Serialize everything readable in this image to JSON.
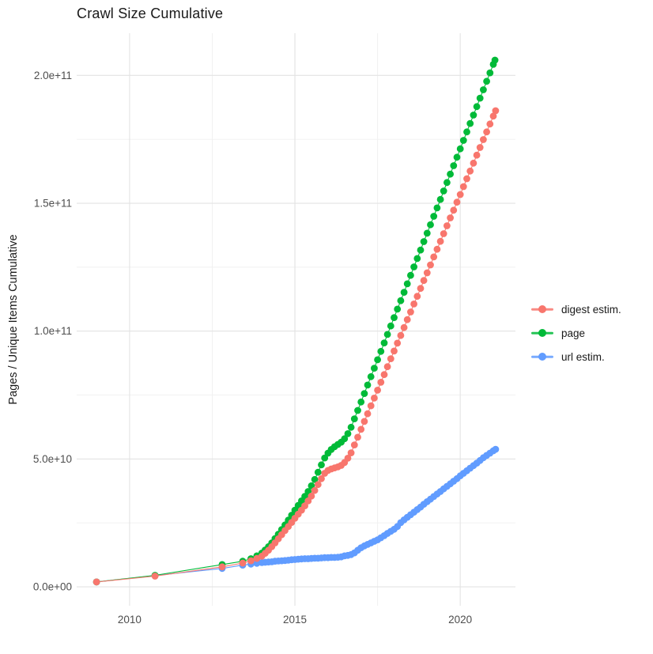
{
  "page": {
    "title": "Crawl Size Cumulative"
  },
  "y_axis_title": "Pages / Unique Items Cumulative",
  "legend": {
    "items": [
      {
        "label": "digest estim.",
        "color": "#F8766D"
      },
      {
        "label": "page",
        "color": "#00BA38"
      },
      {
        "label": "url estim.",
        "color": "#619CFF"
      }
    ]
  },
  "colors": {
    "digest": "#F8766D",
    "page": "#00BA38",
    "url": "#619CFF",
    "grid_major": "#e3e3e3",
    "grid_minor": "#f0f0f0",
    "axis_text": "#4d4d4d",
    "title_text": "#1a1a1a"
  },
  "chart_data": {
    "type": "scatter",
    "title": "Crawl Size Cumulative",
    "xlabel": "",
    "ylabel": "Pages / Unique Items Cumulative",
    "grid": "on",
    "legend_position": "right",
    "x_axis": {
      "range": [
        2008.4,
        2021.67
      ],
      "ticks": [
        2010,
        2015,
        2020
      ],
      "tick_labels": [
        "2010",
        "2015",
        "2020"
      ],
      "minor_ticks": [
        2012.5,
        2017.5
      ]
    },
    "y_axis": {
      "unit": "billions (1e9) of pages / unique items",
      "range": [
        -7.4,
        216.5
      ],
      "ticks": [
        0,
        50,
        100,
        150,
        200
      ],
      "tick_labels": [
        "0.0e+00",
        "5.0e+10",
        "1.0e+11",
        "1.5e+11",
        "2.0e+11"
      ],
      "minor_ticks": [
        25,
        75,
        125,
        175
      ]
    },
    "series": [
      {
        "name": "digest estim.",
        "color": "#F8766D",
        "points": [
          [
            2009.0,
            1.9
          ],
          [
            2010.77,
            4.2
          ],
          [
            2012.8,
            7.8
          ],
          [
            2013.42,
            9.3
          ],
          [
            2013.67,
            10.2
          ],
          [
            2013.85,
            11.1
          ],
          [
            2014.0,
            12.0
          ],
          [
            2014.1,
            13.1
          ],
          [
            2014.2,
            14.3
          ],
          [
            2014.3,
            15.7
          ],
          [
            2014.4,
            17.2
          ],
          [
            2014.5,
            18.8
          ],
          [
            2014.6,
            20.4
          ],
          [
            2014.7,
            22.0
          ],
          [
            2014.8,
            23.6
          ],
          [
            2014.9,
            25.2
          ],
          [
            2015.0,
            26.8
          ],
          [
            2015.1,
            28.4
          ],
          [
            2015.2,
            30.0
          ],
          [
            2015.3,
            31.7
          ],
          [
            2015.4,
            33.6
          ],
          [
            2015.5,
            35.5
          ],
          [
            2015.6,
            37.7
          ],
          [
            2015.7,
            40.0
          ],
          [
            2015.8,
            42.3
          ],
          [
            2015.9,
            44.4
          ],
          [
            2016.0,
            45.5
          ],
          [
            2016.1,
            46.1
          ],
          [
            2016.2,
            46.5
          ],
          [
            2016.3,
            46.9
          ],
          [
            2016.4,
            47.5
          ],
          [
            2016.5,
            48.6
          ],
          [
            2016.6,
            50.3
          ],
          [
            2016.7,
            52.4
          ],
          [
            2016.8,
            55.5
          ],
          [
            2016.9,
            58.5
          ],
          [
            2017.0,
            61.6
          ],
          [
            2017.1,
            64.7
          ],
          [
            2017.2,
            67.7
          ],
          [
            2017.3,
            70.8
          ],
          [
            2017.4,
            73.8
          ],
          [
            2017.5,
            76.9
          ],
          [
            2017.6,
            80.0
          ],
          [
            2017.7,
            83.0
          ],
          [
            2017.8,
            86.1
          ],
          [
            2017.9,
            89.2
          ],
          [
            2018.0,
            92.2
          ],
          [
            2018.1,
            95.3
          ],
          [
            2018.2,
            98.3
          ],
          [
            2018.3,
            101.4
          ],
          [
            2018.4,
            104.5
          ],
          [
            2018.5,
            107.5
          ],
          [
            2018.6,
            110.6
          ],
          [
            2018.7,
            113.6
          ],
          [
            2018.8,
            116.7
          ],
          [
            2018.9,
            119.8
          ],
          [
            2019.0,
            122.8
          ],
          [
            2019.1,
            125.9
          ],
          [
            2019.2,
            129.0
          ],
          [
            2019.3,
            132.0
          ],
          [
            2019.4,
            135.1
          ],
          [
            2019.5,
            138.1
          ],
          [
            2019.6,
            141.2
          ],
          [
            2019.7,
            144.3
          ],
          [
            2019.8,
            147.3
          ],
          [
            2019.9,
            150.4
          ],
          [
            2020.0,
            153.4
          ],
          [
            2020.1,
            156.5
          ],
          [
            2020.2,
            159.6
          ],
          [
            2020.3,
            162.6
          ],
          [
            2020.4,
            165.7
          ],
          [
            2020.5,
            168.8
          ],
          [
            2020.6,
            171.8
          ],
          [
            2020.7,
            174.9
          ],
          [
            2020.8,
            177.9
          ],
          [
            2020.9,
            181.0
          ],
          [
            2021.0,
            184.1
          ],
          [
            2021.07,
            186.2
          ]
        ]
      },
      {
        "name": "page",
        "color": "#00BA38",
        "points": [
          [
            2009.0,
            1.9
          ],
          [
            2010.77,
            4.5
          ],
          [
            2012.8,
            8.7
          ],
          [
            2013.42,
            10.0
          ],
          [
            2013.67,
            11.0
          ],
          [
            2013.85,
            12.1
          ],
          [
            2014.0,
            13.2
          ],
          [
            2014.1,
            14.4
          ],
          [
            2014.2,
            15.7
          ],
          [
            2014.3,
            17.2
          ],
          [
            2014.4,
            18.9
          ],
          [
            2014.5,
            20.6
          ],
          [
            2014.6,
            22.4
          ],
          [
            2014.7,
            24.2
          ],
          [
            2014.8,
            26.1
          ],
          [
            2014.9,
            28.0
          ],
          [
            2015.0,
            30.0
          ],
          [
            2015.1,
            31.8
          ],
          [
            2015.2,
            33.6
          ],
          [
            2015.3,
            35.4
          ],
          [
            2015.4,
            37.3
          ],
          [
            2015.5,
            39.5
          ],
          [
            2015.6,
            42.0
          ],
          [
            2015.7,
            44.8
          ],
          [
            2015.8,
            47.7
          ],
          [
            2015.9,
            50.4
          ],
          [
            2016.0,
            52.3
          ],
          [
            2016.1,
            53.7
          ],
          [
            2016.2,
            54.8
          ],
          [
            2016.3,
            55.7
          ],
          [
            2016.4,
            56.6
          ],
          [
            2016.5,
            57.9
          ],
          [
            2016.6,
            59.9
          ],
          [
            2016.7,
            62.4
          ],
          [
            2016.8,
            65.7
          ],
          [
            2016.9,
            69.0
          ],
          [
            2017.0,
            72.3
          ],
          [
            2017.1,
            75.6
          ],
          [
            2017.2,
            78.9
          ],
          [
            2017.3,
            82.2
          ],
          [
            2017.4,
            85.5
          ],
          [
            2017.5,
            88.8
          ],
          [
            2017.6,
            92.1
          ],
          [
            2017.7,
            95.4
          ],
          [
            2017.8,
            98.7
          ],
          [
            2017.9,
            102.0
          ],
          [
            2018.0,
            105.3
          ],
          [
            2018.1,
            108.6
          ],
          [
            2018.2,
            111.9
          ],
          [
            2018.3,
            115.2
          ],
          [
            2018.4,
            118.5
          ],
          [
            2018.5,
            121.8
          ],
          [
            2018.6,
            125.1
          ],
          [
            2018.7,
            128.4
          ],
          [
            2018.8,
            131.7
          ],
          [
            2018.9,
            135.0
          ],
          [
            2019.0,
            138.3
          ],
          [
            2019.1,
            141.6
          ],
          [
            2019.2,
            144.9
          ],
          [
            2019.3,
            148.2
          ],
          [
            2019.4,
            151.5
          ],
          [
            2019.5,
            154.8
          ],
          [
            2019.6,
            158.1
          ],
          [
            2019.7,
            161.4
          ],
          [
            2019.8,
            164.7
          ],
          [
            2019.9,
            168.0
          ],
          [
            2020.0,
            171.3
          ],
          [
            2020.1,
            174.6
          ],
          [
            2020.2,
            177.9
          ],
          [
            2020.3,
            181.2
          ],
          [
            2020.4,
            184.5
          ],
          [
            2020.5,
            187.8
          ],
          [
            2020.6,
            191.1
          ],
          [
            2020.7,
            194.4
          ],
          [
            2020.8,
            197.7
          ],
          [
            2020.9,
            201.0
          ],
          [
            2021.0,
            204.3
          ],
          [
            2021.05,
            206.0
          ]
        ]
      },
      {
        "name": "url estim.",
        "color": "#619CFF",
        "points": [
          [
            2009.0,
            1.9
          ],
          [
            2010.77,
            4.4
          ],
          [
            2012.8,
            7.2
          ],
          [
            2013.42,
            8.5
          ],
          [
            2013.67,
            8.9
          ],
          [
            2013.85,
            9.2
          ],
          [
            2014.0,
            9.5
          ],
          [
            2014.1,
            9.6
          ],
          [
            2014.2,
            9.7
          ],
          [
            2014.3,
            9.8
          ],
          [
            2014.4,
            10.0
          ],
          [
            2014.5,
            10.1
          ],
          [
            2014.6,
            10.2
          ],
          [
            2014.7,
            10.3
          ],
          [
            2014.8,
            10.4
          ],
          [
            2014.9,
            10.6
          ],
          [
            2015.0,
            10.7
          ],
          [
            2015.1,
            10.8
          ],
          [
            2015.2,
            10.9
          ],
          [
            2015.3,
            11.0
          ],
          [
            2015.4,
            11.0
          ],
          [
            2015.5,
            11.1
          ],
          [
            2015.6,
            11.2
          ],
          [
            2015.7,
            11.2
          ],
          [
            2015.8,
            11.3
          ],
          [
            2015.9,
            11.4
          ],
          [
            2016.0,
            11.4
          ],
          [
            2016.1,
            11.5
          ],
          [
            2016.2,
            11.5
          ],
          [
            2016.3,
            11.6
          ],
          [
            2016.4,
            11.7
          ],
          [
            2016.5,
            12.1
          ],
          [
            2016.6,
            12.3
          ],
          [
            2016.7,
            12.6
          ],
          [
            2016.8,
            13.3
          ],
          [
            2016.9,
            14.3
          ],
          [
            2017.0,
            15.3
          ],
          [
            2017.1,
            16.0
          ],
          [
            2017.2,
            16.6
          ],
          [
            2017.3,
            17.2
          ],
          [
            2017.4,
            17.8
          ],
          [
            2017.5,
            18.4
          ],
          [
            2017.6,
            19.2
          ],
          [
            2017.7,
            20.0
          ],
          [
            2017.8,
            20.9
          ],
          [
            2017.9,
            21.7
          ],
          [
            2018.0,
            22.5
          ],
          [
            2018.1,
            23.6
          ],
          [
            2018.2,
            25.1
          ],
          [
            2018.3,
            26.2
          ],
          [
            2018.4,
            27.2
          ],
          [
            2018.5,
            28.2
          ],
          [
            2018.6,
            29.2
          ],
          [
            2018.7,
            30.2
          ],
          [
            2018.8,
            31.2
          ],
          [
            2018.9,
            32.3
          ],
          [
            2019.0,
            33.3
          ],
          [
            2019.1,
            34.3
          ],
          [
            2019.2,
            35.3
          ],
          [
            2019.3,
            36.3
          ],
          [
            2019.4,
            37.3
          ],
          [
            2019.5,
            38.3
          ],
          [
            2019.6,
            39.3
          ],
          [
            2019.7,
            40.3
          ],
          [
            2019.8,
            41.3
          ],
          [
            2019.9,
            42.3
          ],
          [
            2020.0,
            43.4
          ],
          [
            2020.1,
            44.4
          ],
          [
            2020.2,
            45.4
          ],
          [
            2020.3,
            46.4
          ],
          [
            2020.4,
            47.4
          ],
          [
            2020.5,
            48.4
          ],
          [
            2020.6,
            49.4
          ],
          [
            2020.7,
            50.5
          ],
          [
            2020.8,
            51.4
          ],
          [
            2020.9,
            52.3
          ],
          [
            2021.0,
            53.2
          ],
          [
            2021.07,
            53.8
          ]
        ]
      }
    ]
  }
}
